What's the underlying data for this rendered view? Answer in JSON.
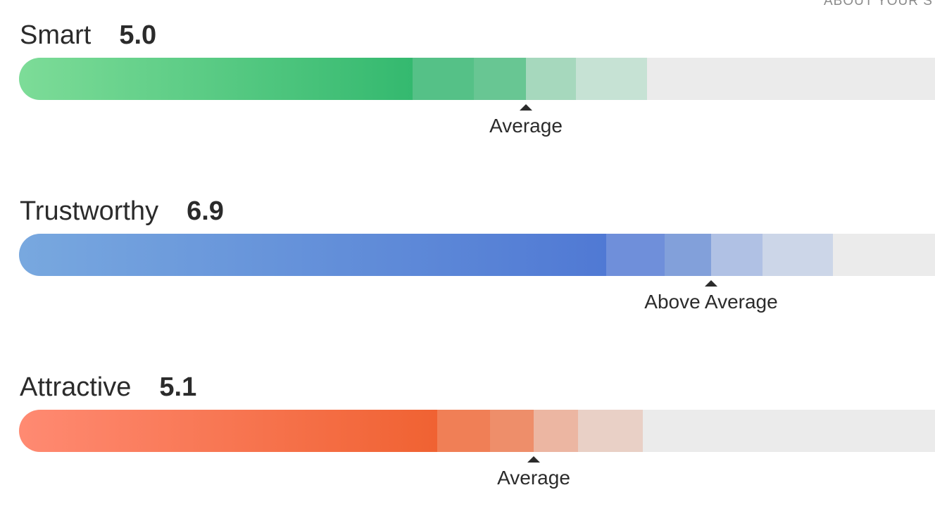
{
  "header": {
    "text": "ABOUT YOUR S"
  },
  "metrics": [
    {
      "name": "Smart",
      "score": "5.0",
      "rating": "Average"
    },
    {
      "name": "Trustworthy",
      "score": "6.9",
      "rating": "Above Average"
    },
    {
      "name": "Attractive",
      "score": "5.1",
      "rating": "Average"
    }
  ]
}
